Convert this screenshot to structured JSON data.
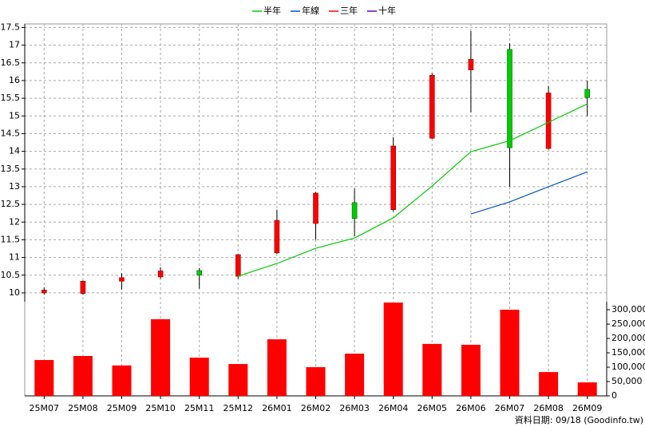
{
  "chart_data": {
    "type": "candlestick",
    "categories": [
      "25M07",
      "25M08",
      "25M09",
      "25M10",
      "25M11",
      "25M12",
      "26M01",
      "26M02",
      "26M03",
      "26M04",
      "26M05",
      "26M06",
      "26M07",
      "26M08",
      "26M09"
    ],
    "open": [
      10.0,
      9.98,
      10.33,
      10.45,
      10.63,
      10.47,
      11.13,
      11.96,
      12.55,
      12.35,
      14.37,
      16.3,
      16.88,
      14.08,
      15.75
    ],
    "high": [
      10.15,
      10.35,
      10.55,
      10.72,
      10.7,
      11.1,
      12.35,
      12.85,
      12.95,
      14.4,
      16.2,
      17.4,
      17.05,
      15.85,
      16.0
    ],
    "low": [
      9.95,
      9.95,
      10.09,
      10.4,
      10.12,
      10.4,
      11.1,
      11.5,
      11.6,
      12.3,
      14.35,
      15.1,
      13.0,
      14.05,
      15.0
    ],
    "close": [
      10.08,
      10.33,
      10.43,
      10.62,
      10.5,
      11.08,
      12.05,
      12.82,
      12.1,
      14.15,
      16.15,
      16.6,
      14.1,
      15.65,
      15.52
    ],
    "up_color": "#ff0000",
    "down_color": "#00cc00",
    "series": [
      {
        "name": "半年",
        "color": "#00cc00",
        "values": [
          null,
          null,
          null,
          null,
          null,
          10.47,
          10.83,
          11.26,
          11.55,
          12.12,
          13.02,
          13.99,
          14.3,
          14.82,
          15.34
        ]
      },
      {
        "name": "年線",
        "color": "#0055cc",
        "values": [
          null,
          null,
          null,
          null,
          null,
          null,
          null,
          null,
          null,
          null,
          null,
          12.23,
          12.57,
          13.0,
          13.42
        ]
      },
      {
        "name": "三年",
        "color": "#ff0000",
        "values": [
          null,
          null,
          null,
          null,
          null,
          null,
          null,
          null,
          null,
          null,
          null,
          null,
          null,
          null,
          null
        ]
      },
      {
        "name": "十年",
        "color": "#6600cc",
        "values": [
          null,
          null,
          null,
          null,
          null,
          null,
          null,
          null,
          null,
          null,
          null,
          null,
          null,
          null,
          null
        ]
      }
    ],
    "volume": {
      "color": "#ff0000",
      "values": [
        125000,
        139000,
        106000,
        267000,
        133000,
        111000,
        197000,
        100000,
        147000,
        325000,
        181000,
        178000,
        300000,
        83000,
        47000
      ]
    },
    "ylim": [
      9.75,
      17.6
    ],
    "yticks": [
      10,
      10.5,
      11,
      11.5,
      12,
      12.5,
      13,
      13.5,
      14,
      14.5,
      15,
      15.5,
      16,
      16.5,
      17,
      17.5
    ],
    "y2lim": [
      0,
      328000
    ],
    "y2ticks": [
      0,
      {
        "value": 50000,
        "label": "50,000"
      },
      {
        "value": 100000,
        "label": "100,000"
      },
      {
        "value": 150000,
        "label": "150,000"
      },
      {
        "value": 200000,
        "label": "200,000"
      },
      {
        "value": 250000,
        "label": "250,000"
      },
      {
        "value": 300000,
        "label": "300,000"
      }
    ],
    "grid": true,
    "footnote": "資料日期: 09/18 (Goodinfo.tw)"
  }
}
